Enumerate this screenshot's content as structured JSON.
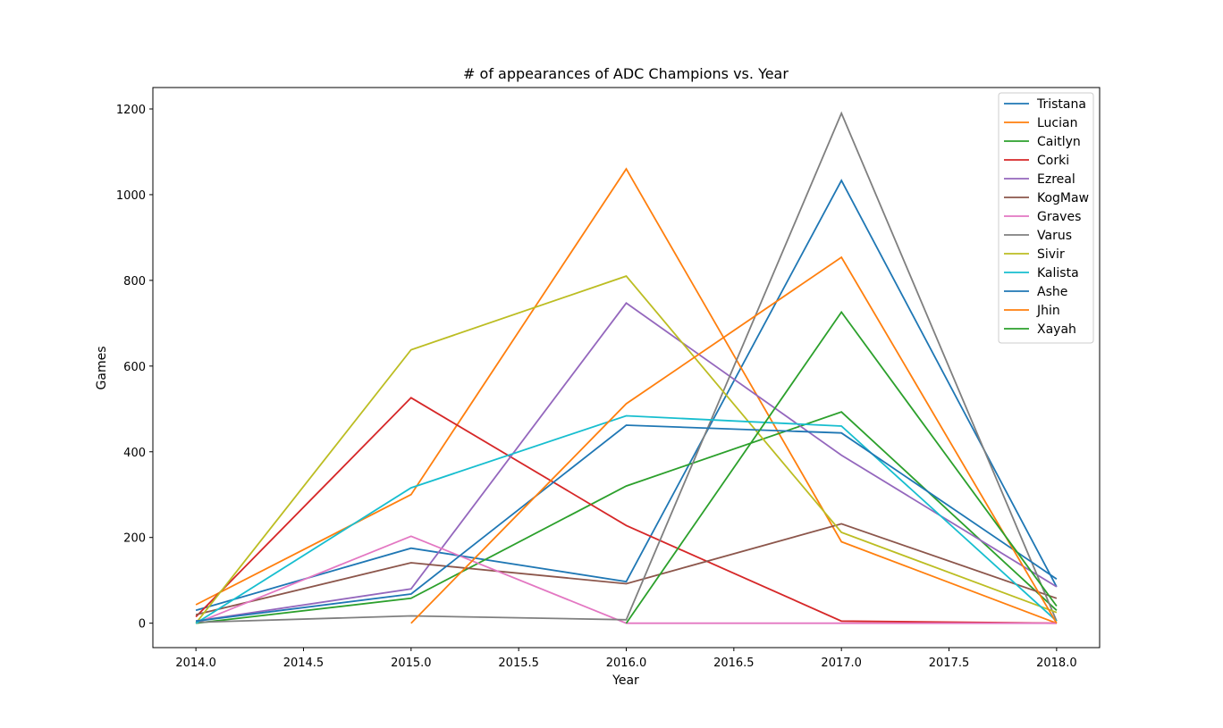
{
  "chart_data": {
    "type": "line",
    "title": "# of appearances of ADC Champions vs. Year",
    "xlabel": "Year",
    "ylabel": "Games",
    "x": [
      2014,
      2015,
      2016,
      2017,
      2018
    ],
    "xlim": [
      2013.8,
      2018.2
    ],
    "ylim": [
      -57,
      1250
    ],
    "xticks": [
      2014.0,
      2014.5,
      2015.0,
      2015.5,
      2016.0,
      2016.5,
      2017.0,
      2017.5,
      2018.0
    ],
    "xtick_labels": [
      "2014.0",
      "2014.5",
      "2015.0",
      "2015.5",
      "2016.0",
      "2016.5",
      "2017.0",
      "2017.5",
      "2018.0"
    ],
    "yticks": [
      0,
      200,
      400,
      600,
      800,
      1000,
      1200
    ],
    "ytick_labels": [
      "0",
      "200",
      "400",
      "600",
      "800",
      "1000",
      "1200"
    ],
    "grid": false,
    "legend_position": "top-right",
    "series": [
      {
        "name": "Tristana",
        "color": "#1f77b4",
        "values": [
          30,
          175,
          97,
          1033,
          85
        ]
      },
      {
        "name": "Lucian",
        "color": "#ff7f0e",
        "values": [
          43,
          300,
          1060,
          190,
          0
        ]
      },
      {
        "name": "Caitlyn",
        "color": "#2ca02c",
        "values": [
          0,
          58,
          320,
          493,
          30
        ]
      },
      {
        "name": "Corki",
        "color": "#d62728",
        "values": [
          15,
          526,
          228,
          5,
          0
        ]
      },
      {
        "name": "Ezreal",
        "color": "#9467bd",
        "values": [
          5,
          80,
          747,
          392,
          85
        ]
      },
      {
        "name": "KogMaw",
        "color": "#8c564b",
        "values": [
          20,
          141,
          92,
          232,
          58
        ]
      },
      {
        "name": "Graves",
        "color": "#e377c2",
        "values": [
          0,
          203,
          0,
          0,
          0
        ]
      },
      {
        "name": "Varus",
        "color": "#7f7f7f",
        "values": [
          2,
          17,
          8,
          1190,
          5
        ]
      },
      {
        "name": "Sivir",
        "color": "#bcbd22",
        "values": [
          0,
          638,
          810,
          212,
          25
        ]
      },
      {
        "name": "Kalista",
        "color": "#17becf",
        "values": [
          0,
          316,
          484,
          460,
          5
        ]
      },
      {
        "name": "Ashe",
        "color": "#1f77b4",
        "values": [
          5,
          68,
          462,
          444,
          103
        ]
      },
      {
        "name": "Jhin",
        "color": "#ff7f0e",
        "values": [
          null,
          0,
          512,
          854,
          0
        ]
      },
      {
        "name": "Xayah",
        "color": "#2ca02c",
        "values": [
          null,
          null,
          0,
          726,
          40
        ]
      }
    ]
  }
}
